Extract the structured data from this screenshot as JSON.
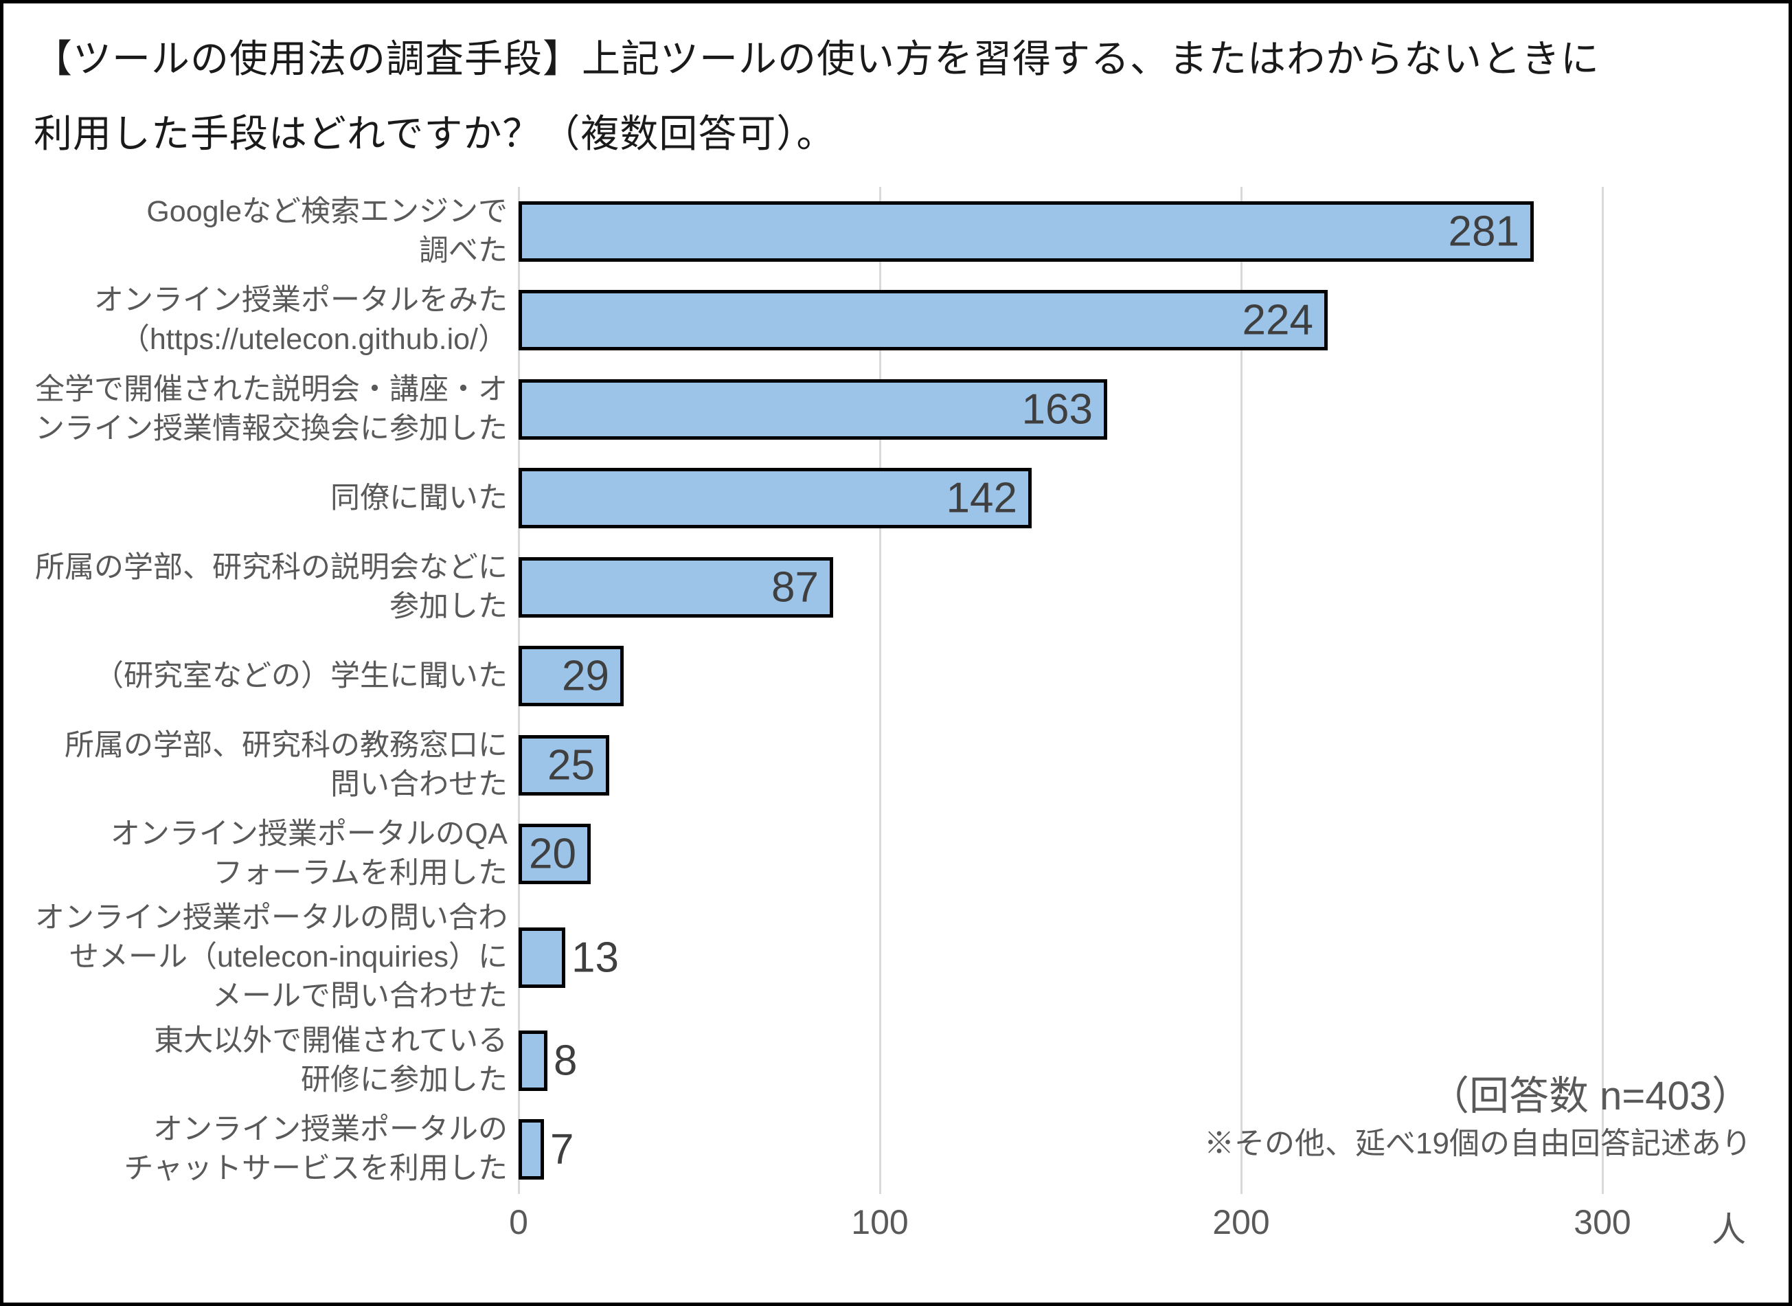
{
  "title": {
    "line1": "【ツールの使用法の調査手段】上記ツールの使い方を習得する、またはわからないときに",
    "line2": "利用した手段はどれですか？（複数回答可）。"
  },
  "chart_data": {
    "type": "bar",
    "orientation": "horizontal",
    "title": "【ツールの使用法の調査手段】上記ツールの使い方を習得する、またはわからないときに利用した手段はどれですか？（複数回答可）。",
    "categories": [
      "Googleなど検索エンジンで調べた",
      "オンライン授業ポータルをみた（https://utelecon.github.io/）",
      "全学で開催された説明会・講座・オンライン授業情報交換会に参加した",
      "同僚に聞いた",
      "所属の学部、研究科の説明会などに参加した",
      "（研究室などの）学生に聞いた",
      "所属の学部、研究科の教務窓口に問い合わせた",
      "オンライン授業ポータルのQAフォーラムを利用した",
      "オンライン授業ポータルの問い合わせメール（utelecon-inquiries）にメールで問い合わせた",
      "東大以外で開催されている研修に参加した",
      "オンライン授業ポータルのチャットサービスを利用した"
    ],
    "category_label_lines": [
      [
        "Googleなど検索エンジンで",
        "調べた"
      ],
      [
        "オンライン授業ポータルをみた",
        "（https://utelecon.github.io/）"
      ],
      [
        "全学で開催された説明会・講座・オ",
        "ンライン授業情報交換会に参加した"
      ],
      [
        "同僚に聞いた"
      ],
      [
        "所属の学部、研究科の説明会などに",
        "参加した"
      ],
      [
        "（研究室などの）学生に聞いた"
      ],
      [
        "所属の学部、研究科の教務窓口に",
        "問い合わせた"
      ],
      [
        "オンライン授業ポータルのQA",
        "フォーラムを利用した"
      ],
      [
        "オンライン授業ポータルの問い合わ",
        "せメール（utelecon-inquiries）に",
        "メールで問い合わせた"
      ],
      [
        "東大以外で開催されている",
        "研修に参加した"
      ],
      [
        "オンライン授業ポータルの",
        "チャットサービスを利用した"
      ]
    ],
    "values": [
      281,
      224,
      163,
      142,
      87,
      29,
      25,
      20,
      13,
      8,
      7
    ],
    "x_ticks": [
      0,
      100,
      200,
      300
    ],
    "xlim": [
      0,
      300
    ],
    "x_unit": "人",
    "grid": true,
    "bar_color": "#9cc3e8",
    "bar_border_color": "#000000",
    "label_inside_min": 20,
    "note_line1": "（回答数 n=403）",
    "note_line2": "※その他、延べ19個の自由回答記述あり"
  },
  "layout_colors": {
    "grid_color": "#d9d9d9",
    "axis_text_color": "#595959",
    "value_text_color": "#3f3f3f",
    "title_color": "#1a1a1a"
  }
}
